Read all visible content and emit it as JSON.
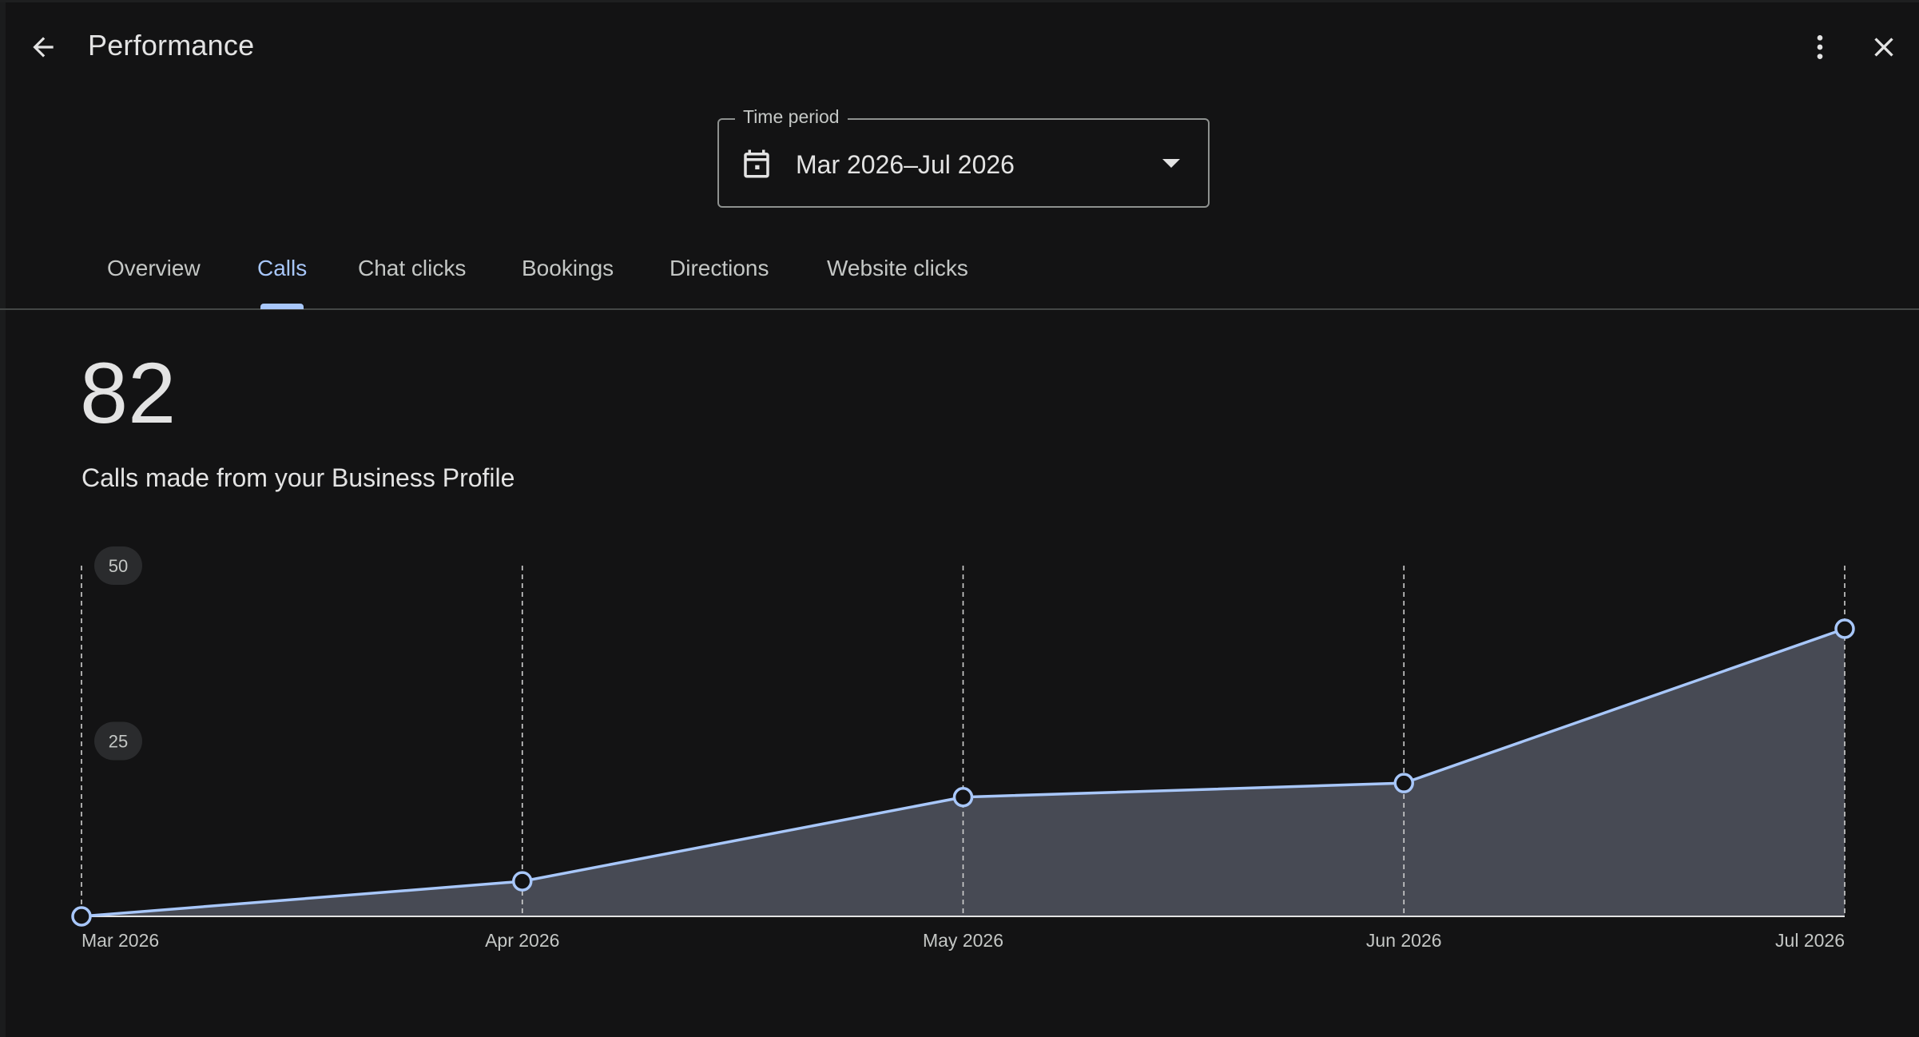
{
  "header": {
    "title": "Performance",
    "back_icon": "arrow-back-icon",
    "more_icon": "more-vert-icon",
    "close_icon": "close-icon"
  },
  "time_period": {
    "label": "Time period",
    "value": "Mar 2026–Jul 2026",
    "icon": "calendar-icon"
  },
  "tabs": [
    {
      "label": "Overview",
      "active": false
    },
    {
      "label": "Calls",
      "active": true
    },
    {
      "label": "Chat clicks",
      "active": false
    },
    {
      "label": "Bookings",
      "active": false
    },
    {
      "label": "Directions",
      "active": false
    },
    {
      "label": "Website clicks",
      "active": false
    }
  ],
  "metric": {
    "value": "82",
    "label": "Calls made from your Business Profile"
  },
  "colors": {
    "accent": "#a8c7fa",
    "background": "#131314",
    "area_fill": "#474a54",
    "text": "#e3e3e3"
  },
  "chart_data": {
    "type": "area",
    "x": [
      "Mar 2026",
      "Apr 2026",
      "May 2026",
      "Jun 2026",
      "Jul 2026"
    ],
    "series": [
      {
        "values": [
          0,
          5,
          17,
          19,
          41
        ]
      }
    ],
    "yticks": [
      25,
      50
    ],
    "ylim": [
      0,
      50
    ],
    "grid": "vertical dashed"
  }
}
